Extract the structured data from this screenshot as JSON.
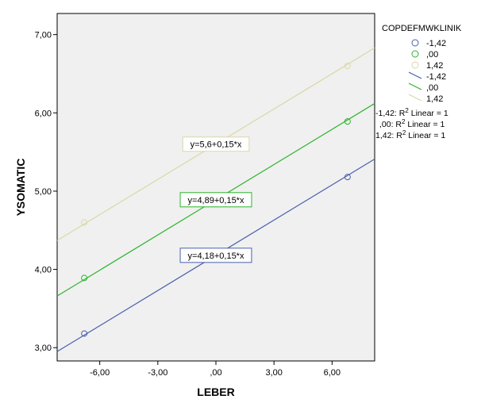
{
  "chart_data": {
    "type": "scatter",
    "xlabel": "LEBER",
    "ylabel": "YSOMATIC",
    "xlim": [
      -8.2,
      8.2
    ],
    "ylim": [
      2.83,
      7.27
    ],
    "x_ticks": [
      -6,
      -3,
      0,
      3,
      6
    ],
    "x_tick_labels": [
      "-6,00",
      "-3,00",
      ",00",
      "3,00",
      "6,00"
    ],
    "y_ticks": [
      3,
      4,
      5,
      6,
      7
    ],
    "y_tick_labels": [
      "3,00",
      "4,00",
      "5,00",
      "6,00",
      "7,00"
    ],
    "grid": false,
    "legend": {
      "title": "COPDEFMWKLINIK",
      "placement": "right",
      "marker_entries": [
        "-1,42",
        ",00",
        "1,42"
      ],
      "line_entries": [
        "-1,42",
        ",00",
        "1,42"
      ],
      "r2_entries": [
        {
          "prefix": "-1,42: R",
          "sup": "2",
          "suffix": " Linear = 1"
        },
        {
          "prefix": ",00: R",
          "sup": "2",
          "suffix": " Linear = 1"
        },
        {
          "prefix": "1,42: R",
          "sup": "2",
          "suffix": " Linear = 1"
        }
      ]
    },
    "series": [
      {
        "name": "-1,42",
        "color": "#4a5fae",
        "points": [
          {
            "x": -6.8,
            "y": 3.18
          },
          {
            "x": 6.8,
            "y": 5.18
          }
        ],
        "fit": {
          "intercept": 4.18,
          "slope": 0.15,
          "label": "y=4,18+0,15*x",
          "label_at": {
            "x": 0,
            "y": 4.18
          }
        }
      },
      {
        "name": ",00",
        "color": "#2db42d",
        "points": [
          {
            "x": -6.8,
            "y": 3.89
          },
          {
            "x": 6.8,
            "y": 5.89
          }
        ],
        "fit": {
          "intercept": 4.89,
          "slope": 0.15,
          "label": "y=4,89+0,15*x",
          "label_at": {
            "x": 0,
            "y": 4.89
          }
        }
      },
      {
        "name": "1,42",
        "color": "#d8d8a6",
        "points": [
          {
            "x": -6.8,
            "y": 4.6
          },
          {
            "x": 6.8,
            "y": 6.6
          }
        ],
        "fit": {
          "intercept": 5.6,
          "slope": 0.15,
          "label": "y=5,6+0,15*x",
          "label_at": {
            "x": 0,
            "y": 5.6
          }
        }
      }
    ]
  }
}
